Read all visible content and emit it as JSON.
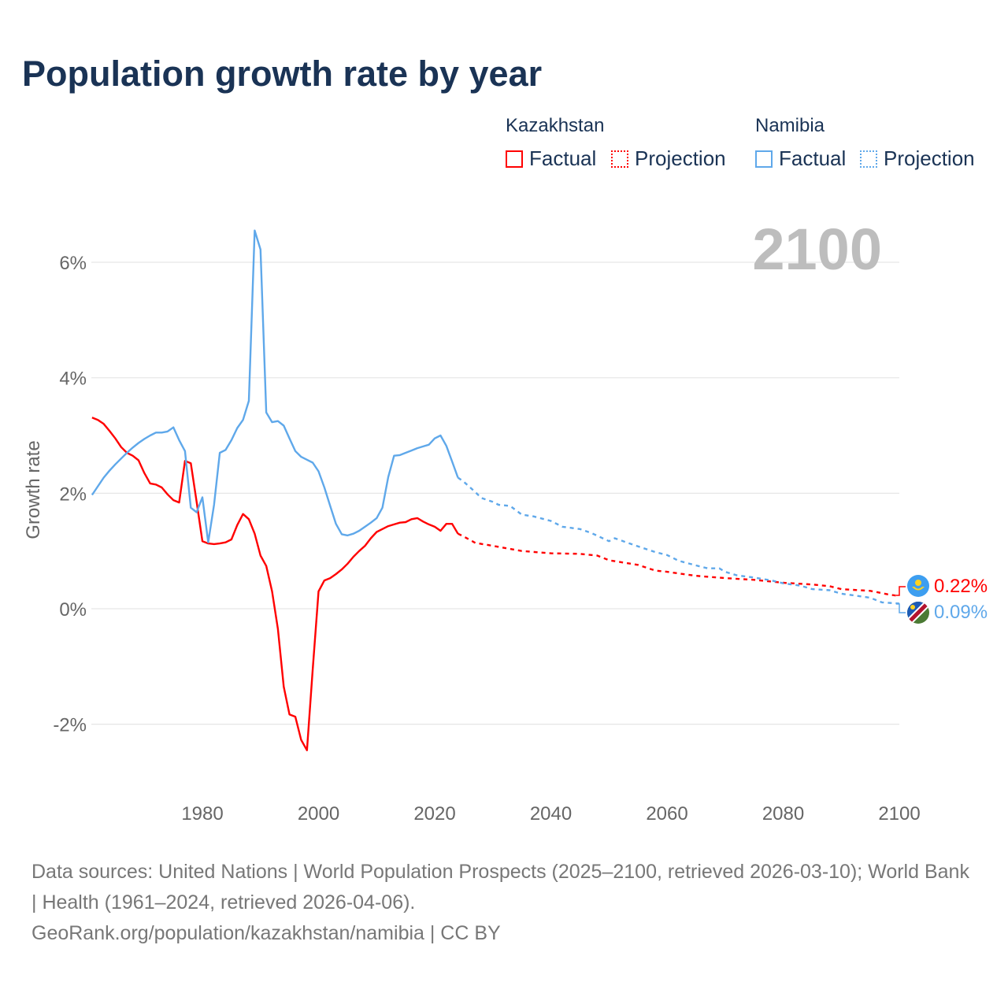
{
  "title": "Population growth rate by year",
  "legend": {
    "groups": [
      {
        "name": "Kazakhstan",
        "factual": "Factual",
        "projection": "Projection",
        "color": "#ff0000"
      },
      {
        "name": "Namibia",
        "factual": "Factual",
        "projection": "Projection",
        "color": "#5fa8ea"
      }
    ]
  },
  "year_label": "2100",
  "end_labels": {
    "kazakhstan": "0.22%",
    "namibia": "0.09%"
  },
  "flags": {
    "kazakhstan": "kazakhstan-flag-icon",
    "namibia": "namibia-flag-icon"
  },
  "sources": {
    "line1": "Data sources: United Nations | World Population Prospects (2025–2100, retrieved 2026-03-10); World Bank | Health (1961–2024, retrieved 2026-04-06).",
    "line2": "GeoRank.org/population/kazakhstan/namibia | CC BY"
  },
  "chart_data": {
    "type": "line",
    "title": "Population growth rate by year",
    "xlabel": "",
    "ylabel": "Growth rate",
    "xlim": [
      1961,
      2100
    ],
    "ylim": [
      -3,
      7
    ],
    "x_ticks": [
      1980,
      2000,
      2020,
      2040,
      2060,
      2080,
      2100
    ],
    "y_ticks": [
      -2,
      0,
      2,
      4,
      6
    ],
    "y_tick_labels": [
      "-2%",
      "0%",
      "2%",
      "4%",
      "6%"
    ],
    "grid": true,
    "legend_position": "top-right",
    "series": [
      {
        "name": "Kazakhstan Factual",
        "color": "#ff0000",
        "style": "solid",
        "x_start": 1961,
        "values": [
          3.31,
          3.27,
          3.2,
          3.08,
          2.95,
          2.8,
          2.7,
          2.65,
          2.57,
          2.35,
          2.17,
          2.15,
          2.1,
          1.98,
          1.88,
          1.84,
          2.56,
          2.52,
          1.85,
          1.17,
          1.13,
          1.12,
          1.13,
          1.15,
          1.2,
          1.45,
          1.64,
          1.55,
          1.3,
          0.92,
          0.74,
          0.3,
          -0.35,
          -1.35,
          -1.83,
          -1.87,
          -2.27,
          -2.45,
          -1.05,
          0.3,
          0.49,
          0.53,
          0.6,
          0.68,
          0.78,
          0.9,
          1.0,
          1.09,
          1.22,
          1.33,
          1.38,
          1.43,
          1.46,
          1.49,
          1.5,
          1.55,
          1.57,
          1.51,
          1.46,
          1.42,
          1.35,
          1.47,
          1.47,
          1.3
        ]
      },
      {
        "name": "Kazakhstan Projection",
        "color": "#ff0000",
        "style": "dashed",
        "x": [
          2024,
          2025,
          2027,
          2030,
          2035,
          2040,
          2045,
          2048,
          2050,
          2055,
          2058,
          2060,
          2065,
          2070,
          2075,
          2080,
          2085,
          2088,
          2090,
          2095,
          2098,
          2100
        ],
        "values": [
          1.3,
          1.25,
          1.14,
          1.09,
          1.0,
          0.96,
          0.95,
          0.92,
          0.84,
          0.76,
          0.66,
          0.64,
          0.57,
          0.53,
          0.5,
          0.45,
          0.42,
          0.39,
          0.34,
          0.31,
          0.25,
          0.22
        ]
      },
      {
        "name": "Namibia Factual",
        "color": "#5fa8ea",
        "style": "solid",
        "x_start": 1961,
        "values": [
          1.97,
          2.12,
          2.27,
          2.39,
          2.5,
          2.6,
          2.7,
          2.79,
          2.87,
          2.94,
          3.0,
          3.05,
          3.05,
          3.07,
          3.14,
          2.92,
          2.73,
          1.75,
          1.67,
          1.93,
          1.15,
          1.8,
          2.7,
          2.75,
          2.92,
          3.13,
          3.27,
          3.6,
          6.55,
          6.22,
          3.4,
          3.23,
          3.25,
          3.17,
          2.95,
          2.73,
          2.63,
          2.58,
          2.53,
          2.38,
          2.1,
          1.78,
          1.47,
          1.29,
          1.27,
          1.3,
          1.35,
          1.42,
          1.49,
          1.57,
          1.75,
          2.28,
          2.65,
          2.66,
          2.7,
          2.74,
          2.78,
          2.81,
          2.84,
          2.95,
          3.0,
          2.82,
          2.55,
          2.27
        ]
      },
      {
        "name": "Namibia Projection",
        "color": "#5fa8ea",
        "style": "dashed",
        "x": [
          2024,
          2025,
          2027,
          2028,
          2030,
          2031,
          2033,
          2035,
          2037,
          2040,
          2042,
          2045,
          2047,
          2050,
          2051,
          2055,
          2058,
          2060,
          2062,
          2065,
          2067,
          2069,
          2070,
          2072,
          2075,
          2078,
          2080,
          2083,
          2085,
          2088,
          2090,
          2093,
          2095,
          2097,
          2100
        ],
        "values": [
          2.27,
          2.2,
          2.02,
          1.92,
          1.85,
          1.8,
          1.78,
          1.63,
          1.6,
          1.52,
          1.42,
          1.38,
          1.31,
          1.17,
          1.22,
          1.08,
          0.98,
          0.93,
          0.83,
          0.75,
          0.7,
          0.7,
          0.64,
          0.58,
          0.54,
          0.49,
          0.44,
          0.4,
          0.34,
          0.32,
          0.26,
          0.22,
          0.19,
          0.11,
          0.09
        ]
      }
    ]
  }
}
